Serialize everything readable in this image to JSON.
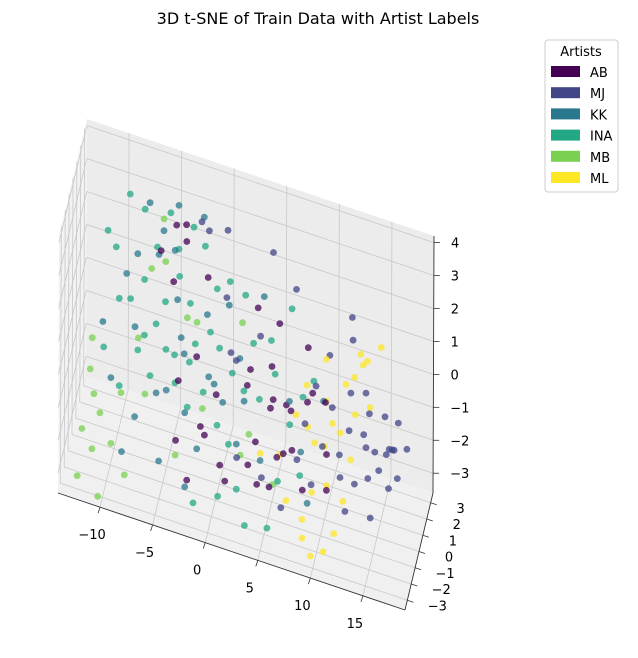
{
  "chart_data": {
    "type": "scatter",
    "title": "3D t-SNE of Train Data with Artist Labels",
    "legend": {
      "title": "Artists",
      "placement": "top-right",
      "entries": [
        {
          "label": "AB",
          "color": "#440154"
        },
        {
          "label": "MJ",
          "color": "#414487"
        },
        {
          "label": "KK",
          "color": "#2a788e"
        },
        {
          "label": "INA",
          "color": "#22a884"
        },
        {
          "label": "MB",
          "color": "#7ad151"
        },
        {
          "label": "ML",
          "color": "#fde725"
        }
      ]
    },
    "axes": {
      "x": {
        "ticks": [
          "−10",
          "−5",
          "0",
          "5",
          "10",
          "15"
        ],
        "range": [
          -14,
          19
        ]
      },
      "y": {
        "ticks": [
          "−3",
          "−2",
          "−1",
          "0",
          "1",
          "2",
          "3"
        ],
        "range": [
          -3.6,
          3.6
        ]
      },
      "z": {
        "ticks": [
          "−3",
          "−2",
          "−1",
          "0",
          "1",
          "2",
          "3",
          "4"
        ],
        "range": [
          -3.6,
          4.2
        ]
      },
      "grid": true
    },
    "series": [
      {
        "label": "AB",
        "color": "#440154",
        "points": [
          [
            -4.9,
            2.1,
            2.7
          ],
          [
            -4.1,
            2.5,
            2.6
          ],
          [
            -6.0,
            1.1,
            2.3
          ],
          [
            -4.0,
            2.3,
            2.2
          ],
          [
            -1.7,
            1.6,
            1.7
          ],
          [
            -2.0,
            -0.5,
            0.3
          ],
          [
            3.2,
            1.2,
            1.5
          ],
          [
            4.9,
            0.2,
            0.4
          ],
          [
            5.3,
            1.1,
            1.3
          ],
          [
            5.5,
            -1.1,
            0.1
          ],
          [
            3.0,
            -0.2,
            0.3
          ],
          [
            5.1,
            -0.7,
            -0.4
          ],
          [
            6.5,
            -0.4,
            -0.3
          ],
          [
            8.5,
            -0.4,
            0.0
          ],
          [
            10.5,
            -1.2,
            0.6
          ],
          [
            7.9,
            1.4,
            0.7
          ],
          [
            8.7,
            0.4,
            -0.1
          ],
          [
            -0.1,
            -0.6,
            -0.6
          ],
          [
            -0.7,
            -2.0,
            -1.2
          ],
          [
            -1.3,
            -1.4,
            -1.3
          ],
          [
            -3.6,
            -0.9,
            -0.4
          ],
          [
            -3.4,
            -2.1,
            -1.6
          ],
          [
            4.4,
            -2.3,
            -2.0
          ],
          [
            6.9,
            -2.3,
            -0.8
          ],
          [
            7.8,
            -2.5,
            -0.5
          ],
          [
            8.8,
            -2.5,
            -1.6
          ],
          [
            10.8,
            -1.7,
            -0.7
          ],
          [
            11.2,
            -2.8,
            -1.2
          ],
          [
            5.6,
            -2.4,
            -1.9
          ],
          [
            1.1,
            -1.6,
            -2.6
          ],
          [
            -2.4,
            -1.9,
            -2.8
          ],
          [
            4.0,
            -1.6,
            -1.1
          ],
          [
            6.0,
            -1.5,
            -1.4
          ],
          [
            3.0,
            -0.8,
            -2.3
          ],
          [
            2.3,
            0.9,
            -0.8
          ],
          [
            -5.2,
            2.2,
            0.9
          ],
          [
            0.8,
            -2.1,
            -1.9
          ],
          [
            7.3,
            -1.4,
            0.1
          ]
        ]
      },
      {
        "label": "MJ",
        "color": "#414487",
        "points": [
          [
            16.4,
            -1.5,
            -0.2
          ],
          [
            15.8,
            -1.8,
            -0.6
          ],
          [
            17.2,
            -0.6,
            0.4
          ],
          [
            15.2,
            -1.2,
            -0.4
          ],
          [
            14.8,
            -1.9,
            -0.9
          ],
          [
            16.9,
            -1.3,
            -0.1
          ],
          [
            18.1,
            -0.8,
            -0.2
          ],
          [
            17.6,
            -1.9,
            -0.6
          ],
          [
            15.9,
            -0.5,
            0.4
          ],
          [
            16.2,
            -0.2,
            -0.7
          ],
          [
            14.4,
            -1.3,
            -0.3
          ],
          [
            13.6,
            -2.1,
            -1.1
          ],
          [
            14.0,
            -0.8,
            -0.2
          ],
          [
            12.9,
            -1.6,
            0.2
          ],
          [
            12.2,
            -2.0,
            -1.1
          ],
          [
            13.8,
            0.3,
            0.5
          ],
          [
            12.4,
            0.2,
            0.4
          ],
          [
            11.0,
            -0.8,
            0.3
          ],
          [
            11.8,
            -1.1,
            -0.9
          ],
          [
            10.4,
            -1.7,
            -0.5
          ],
          [
            9.6,
            -2.4,
            -1.4
          ],
          [
            13.0,
            -2.9,
            -1.6
          ],
          [
            15.3,
            -2.6,
            -1.7
          ],
          [
            12.3,
            1.0,
            1.6
          ],
          [
            11.9,
            1.9,
            1.8
          ],
          [
            10.1,
            1.0,
            0.9
          ],
          [
            6.8,
            1.3,
            2.4
          ],
          [
            3.8,
            0.2,
            1.2
          ],
          [
            4.2,
            2.4,
            2.7
          ],
          [
            1.9,
            -0.9,
            0.8
          ],
          [
            0.3,
            1.0,
            1.6
          ],
          [
            -2.6,
            2.4,
            2.9
          ],
          [
            -1.9,
            2.4,
            2.7
          ],
          [
            -0.2,
            2.6,
            2.8
          ],
          [
            1.0,
            0.2,
            0.4
          ],
          [
            2.4,
            -2.1,
            -1.5
          ],
          [
            4.8,
            -2.2,
            -1.8
          ],
          [
            6.8,
            -2.6,
            -2.3
          ],
          [
            8.6,
            -1.3,
            -0.2
          ],
          [
            9.6,
            -1.2,
            1.0
          ],
          [
            16.7,
            -1.7,
            -1.1
          ],
          [
            17.0,
            -1.1,
            -0.2
          ],
          [
            8.1,
            -2.0,
            -1.0
          ],
          [
            14.6,
            -1.0,
            0.6
          ]
        ]
      },
      {
        "label": "KK",
        "color": "#2a788e",
        "points": [
          [
            -7.5,
            2.3,
            3.0
          ],
          [
            -4.7,
            1.2,
            2.4
          ],
          [
            -5.7,
            -0.9,
            -1.0
          ],
          [
            -7.3,
            -2.1,
            -1.3
          ],
          [
            -8.6,
            -1.9,
            -2.6
          ],
          [
            -10.0,
            -0.9,
            -1.0
          ],
          [
            -11.0,
            -0.3,
            0.3
          ],
          [
            -8.4,
            1.6,
            1.7
          ],
          [
            -6.3,
            1.4,
            2.0
          ],
          [
            -3.3,
            -0.2,
            0.1
          ],
          [
            -4.6,
            -1.3,
            -0.6
          ],
          [
            -2.9,
            -1.1,
            -1.2
          ],
          [
            -1.5,
            -1.8,
            -1.8
          ],
          [
            -0.3,
            -0.6,
            -0.3
          ],
          [
            -1.4,
            0.6,
            1.1
          ],
          [
            -4.2,
            0.5,
            1.3
          ],
          [
            -2.5,
            2.7,
            2.9
          ],
          [
            0.7,
            -1.1,
            -0.5
          ],
          [
            1.7,
            0.6,
            0.1
          ],
          [
            3.7,
            1.4,
            1.8
          ],
          [
            -6.1,
            2.1,
            2.4
          ],
          [
            -9.3,
            1.2,
            1.2
          ],
          [
            -5.0,
            -2.1,
            -2.4
          ],
          [
            -2.3,
            -2.7,
            -2.6
          ],
          [
            9.3,
            -2.6,
            -1.9
          ],
          [
            8.2,
            -1.3,
            -1.1
          ],
          [
            10.1,
            -0.6,
            0.3
          ],
          [
            2.7,
            -1.0,
            -0.3
          ],
          [
            -4.9,
            2.7,
            3.0
          ],
          [
            -3.7,
            0.1,
            0.4
          ],
          [
            0.6,
            0.8,
            1.5
          ],
          [
            2.3,
            -1.9,
            -1.2
          ],
          [
            4.6,
            -2.0,
            -1.4
          ],
          [
            -8.2,
            0.4,
            0.1
          ],
          [
            6.9,
            -0.7,
            0.0
          ],
          [
            -1.0,
            -0.1,
            -0.4
          ]
        ]
      },
      {
        "label": "INA",
        "color": "#22a884",
        "points": [
          [
            -10.3,
            1.2,
            1.9
          ],
          [
            -9.7,
            0.4,
            0.8
          ],
          [
            -8.7,
            0.6,
            0.8
          ],
          [
            -7.6,
            1.2,
            1.2
          ],
          [
            -6.2,
            0.4,
            0.4
          ],
          [
            -7.2,
            0.1,
            0.1
          ],
          [
            -5.5,
            0.9,
            0.9
          ],
          [
            -4.3,
            1.3,
            1.6
          ],
          [
            -3.2,
            1.1,
            1.0
          ],
          [
            -2.4,
            0.2,
            0.3
          ],
          [
            -1.1,
            0.6,
            0.6
          ],
          [
            0.4,
            1.6,
            1.8
          ],
          [
            -0.8,
            1.5,
            1.5
          ],
          [
            -2.2,
            2.2,
            2.3
          ],
          [
            -3.4,
            2.5,
            2.6
          ],
          [
            -5.6,
            2.5,
            2.8
          ],
          [
            -6.6,
            1.8,
            2.0
          ],
          [
            -4.6,
            1.9,
            2.1
          ],
          [
            1.9,
            1.5,
            1.6
          ],
          [
            3.0,
            0.6,
            0.7
          ],
          [
            2.6,
            -0.8,
            -0.1
          ],
          [
            4.0,
            -0.6,
            -0.3
          ],
          [
            5.2,
            0.2,
            0.2
          ],
          [
            7.0,
            -0.9,
            -0.6
          ],
          [
            8.0,
            -0.2,
            0.0
          ],
          [
            9.1,
            -0.4,
            0.7
          ],
          [
            6.2,
            1.8,
            1.5
          ],
          [
            -10.8,
            -0.6,
            -0.3
          ],
          [
            -9.1,
            -1.2,
            -1.0
          ],
          [
            -7.6,
            -0.5,
            -0.1
          ],
          [
            -6.4,
            -0.6,
            -0.7
          ],
          [
            -5.0,
            -0.3,
            0.1
          ],
          [
            -3.9,
            -0.9,
            -0.5
          ],
          [
            -2.6,
            -1.3,
            -0.9
          ],
          [
            -1.3,
            -0.7,
            -0.6
          ],
          [
            0.2,
            -1.2,
            -1.2
          ],
          [
            1.4,
            -1.5,
            -1.5
          ],
          [
            2.5,
            -2.4,
            -2.3
          ],
          [
            0.8,
            -2.6,
            -2.6
          ],
          [
            -1.5,
            -2.7,
            -3.0
          ],
          [
            3.5,
            -3.0,
            -3.0
          ],
          [
            5.6,
            -2.9,
            -2.9
          ],
          [
            6.3,
            -2.1,
            -1.8
          ],
          [
            8.4,
            -2.1,
            -1.4
          ],
          [
            -8.0,
            2.4,
            2.7
          ],
          [
            -9.5,
            2.6,
            2.9
          ],
          [
            -11.3,
            1.8,
            2.0
          ],
          [
            -0.3,
            0.8,
            0.1
          ],
          [
            1.2,
            0.0,
            -0.1
          ],
          [
            4.5,
            1.1,
            0.7
          ],
          [
            -4.4,
            0.3,
            -0.3
          ],
          [
            -2.8,
            -0.2,
            -0.1
          ]
        ]
      },
      {
        "label": "MB",
        "color": "#7ad151",
        "points": [
          [
            -12.0,
            -0.8,
            -1.0
          ],
          [
            -11.5,
            -1.2,
            -1.5
          ],
          [
            -12.3,
            -2.1,
            -2.2
          ],
          [
            -11.2,
            -2.5,
            -2.5
          ],
          [
            -12.4,
            -3.0,
            -3.2
          ],
          [
            -9.5,
            -2.2,
            -2.3
          ],
          [
            -10.3,
            -3.4,
            -3.4
          ],
          [
            -8.0,
            -2.8,
            -2.8
          ],
          [
            -7.8,
            0.2,
            -0.1
          ],
          [
            -7.0,
            1.4,
            1.5
          ],
          [
            -5.7,
            1.5,
            1.8
          ],
          [
            -6.2,
            2.4,
            2.6
          ],
          [
            -3.3,
            0.6,
            0.8
          ],
          [
            -2.5,
            0.9,
            0.6
          ],
          [
            -1.3,
            -0.9,
            -1.0
          ],
          [
            1.8,
            1.0,
            1.0
          ],
          [
            -9.0,
            -1.0,
            -1.3
          ],
          [
            -12.0,
            -0.3,
            -0.3
          ],
          [
            -6.8,
            -0.8,
            -1.2
          ],
          [
            -3.4,
            -2.2,
            -2.0
          ],
          [
            3.2,
            -1.1,
            -1.2
          ],
          [
            5.8,
            -2.0,
            -2.0
          ],
          [
            2.6,
            -1.7,
            -1.6
          ],
          [
            -10.7,
            -1.8,
            -1.7
          ]
        ]
      },
      {
        "label": "ML",
        "color": "#fde725",
        "points": [
          [
            13.0,
            1.1,
            1.2
          ],
          [
            13.3,
            0.9,
            1.0
          ],
          [
            12.6,
            0.6,
            0.7
          ],
          [
            13.6,
            1.2,
            1.0
          ],
          [
            14.8,
            1.5,
            1.4
          ],
          [
            11.8,
            0.6,
            0.4
          ],
          [
            12.9,
            0.0,
            -0.1
          ],
          [
            11.6,
            -0.4,
            -0.6
          ],
          [
            10.3,
            -0.9,
            -0.9
          ],
          [
            10.8,
            -0.2,
            -0.5
          ],
          [
            9.3,
            -0.7,
            -1.0
          ],
          [
            8.5,
            -0.3,
            -0.8
          ],
          [
            7.4,
            -0.4,
            -0.5
          ],
          [
            8.3,
            0.0,
            0.3
          ],
          [
            9.8,
            0.9,
            0.8
          ],
          [
            6.2,
            -1.3,
            -1.4
          ],
          [
            7.1,
            -2.1,
            -2.3
          ],
          [
            8.7,
            -2.3,
            -2.6
          ],
          [
            9.4,
            -1.7,
            -2.0
          ],
          [
            10.7,
            -1.4,
            -1.8
          ],
          [
            9.8,
            -3.1,
            -3.2
          ],
          [
            10.9,
            -2.8,
            -3.1
          ],
          [
            11.8,
            -2.5,
            -2.6
          ],
          [
            12.4,
            -1.8,
            -1.9
          ],
          [
            8.9,
            -2.8,
            -2.9
          ],
          [
            4.4,
            -1.4,
            -1.5
          ],
          [
            12.7,
            -0.6,
            -1.2
          ],
          [
            14.2,
            0.3,
            0.1
          ],
          [
            10.0,
            0.4,
            -0.2
          ]
        ]
      }
    ]
  }
}
